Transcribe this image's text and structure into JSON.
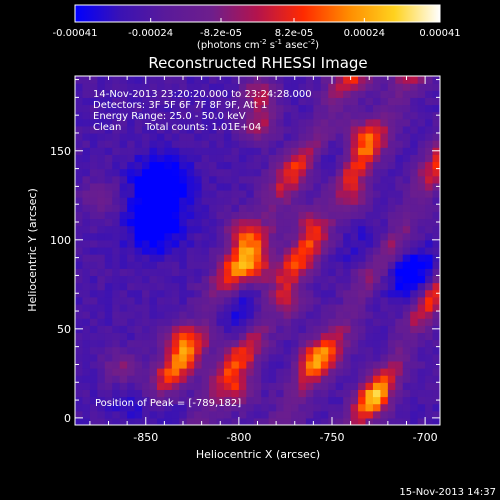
{
  "colorbar": {
    "min": -0.00041,
    "max": 0.00041,
    "tick_labels": [
      "-0.00041",
      "-0.00024",
      "-8.2e-05",
      "8.2e-05",
      "0.00024",
      "0.00041"
    ],
    "units_main": "(photons cm",
    "units_exp1": "-2",
    "units_mid": " s",
    "units_exp2": "-1",
    "units_tail": " asec",
    "units_exp3": "-2",
    "units_close": ")"
  },
  "chart_data": {
    "type": "heatmap",
    "title": "Reconstructed RHESSI Image",
    "xlabel": "Heliocentric X (arcsec)",
    "ylabel": "Heliocentric Y (arcsec)",
    "xlim": [
      -888,
      -692
    ],
    "ylim": [
      -4,
      192
    ],
    "xticks": [
      -850,
      -800,
      -750,
      -700
    ],
    "xtick_labels": [
      "-850",
      "-800",
      "-750",
      "-700"
    ],
    "yticks": [
      0,
      50,
      100,
      150
    ],
    "ytick_labels": [
      "0",
      "50",
      "100",
      "150"
    ],
    "colormap": "rhessi-blue-purple-red-yellow",
    "colormap_stops": [
      "#0000ff",
      "#3a12b4",
      "#5a1a9a",
      "#6e1e8c",
      "#b4144c",
      "#ff2a00",
      "#ff8c00",
      "#ffd21e",
      "#ffffff"
    ],
    "peak": [
      -789,
      182
    ],
    "bands": [
      {
        "x_at_bottom": -850,
        "slope_dx_dy": 0.58,
        "width": 11,
        "strength": 0.95
      },
      {
        "x_at_bottom": -819,
        "slope_dx_dy": 0.58,
        "width": 10,
        "strength": 0.85
      },
      {
        "x_at_bottom": -775,
        "slope_dx_dy": 0.58,
        "width": 10,
        "strength": 0.8
      },
      {
        "x_at_bottom": -735,
        "slope_dx_dy": 0.58,
        "width": 9,
        "strength": 0.9
      }
    ],
    "hotspots": [
      {
        "x": -789,
        "y": 182,
        "value": 1.0
      },
      {
        "x": -789,
        "y": 165,
        "value": 0.9
      },
      {
        "x": -799,
        "y": 105,
        "value": 0.85
      },
      {
        "x": -790,
        "y": 85,
        "value": 0.8
      },
      {
        "x": -832,
        "y": 45,
        "value": 0.8
      },
      {
        "x": -863,
        "y": 28,
        "value": 0.75
      },
      {
        "x": -773,
        "y": 65,
        "value": 0.75
      },
      {
        "x": -760,
        "y": 35,
        "value": 0.7
      },
      {
        "x": -800,
        "y": 15,
        "value": 0.8
      },
      {
        "x": -735,
        "y": 160,
        "value": 0.7
      },
      {
        "x": -737,
        "y": 125,
        "value": 0.65
      },
      {
        "x": -875,
        "y": 125,
        "value": 0.6
      },
      {
        "x": -726,
        "y": 10,
        "value": 0.65
      },
      {
        "x": -763,
        "y": 110,
        "value": 0.55
      }
    ],
    "coldspots": [
      {
        "x": -842,
        "y": 132,
        "value": -1.0
      },
      {
        "x": -845,
        "y": 108,
        "value": -0.9
      },
      {
        "x": -756,
        "y": 148,
        "value": -0.7
      },
      {
        "x": -705,
        "y": 80,
        "value": -0.75
      },
      {
        "x": -725,
        "y": 92,
        "value": -0.6
      },
      {
        "x": -800,
        "y": 60,
        "value": -0.55
      },
      {
        "x": -850,
        "y": 5,
        "value": -0.6
      }
    ]
  },
  "annotations": {
    "time_range": "14-Nov-2013 23:20:20.000 to 23:24:28.000",
    "detectors": "Detectors: 3F 5F 6F 7F 8F 9F, Att 1",
    "energy": "Energy Range: 25.0 - 50.0 keV",
    "algorithm": "Clean",
    "counts": "Total counts: 1.01E+04",
    "peak_label": "Position of Peak = [-789,182]"
  },
  "footer": {
    "timestamp": "15-Nov-2013 14:37"
  }
}
